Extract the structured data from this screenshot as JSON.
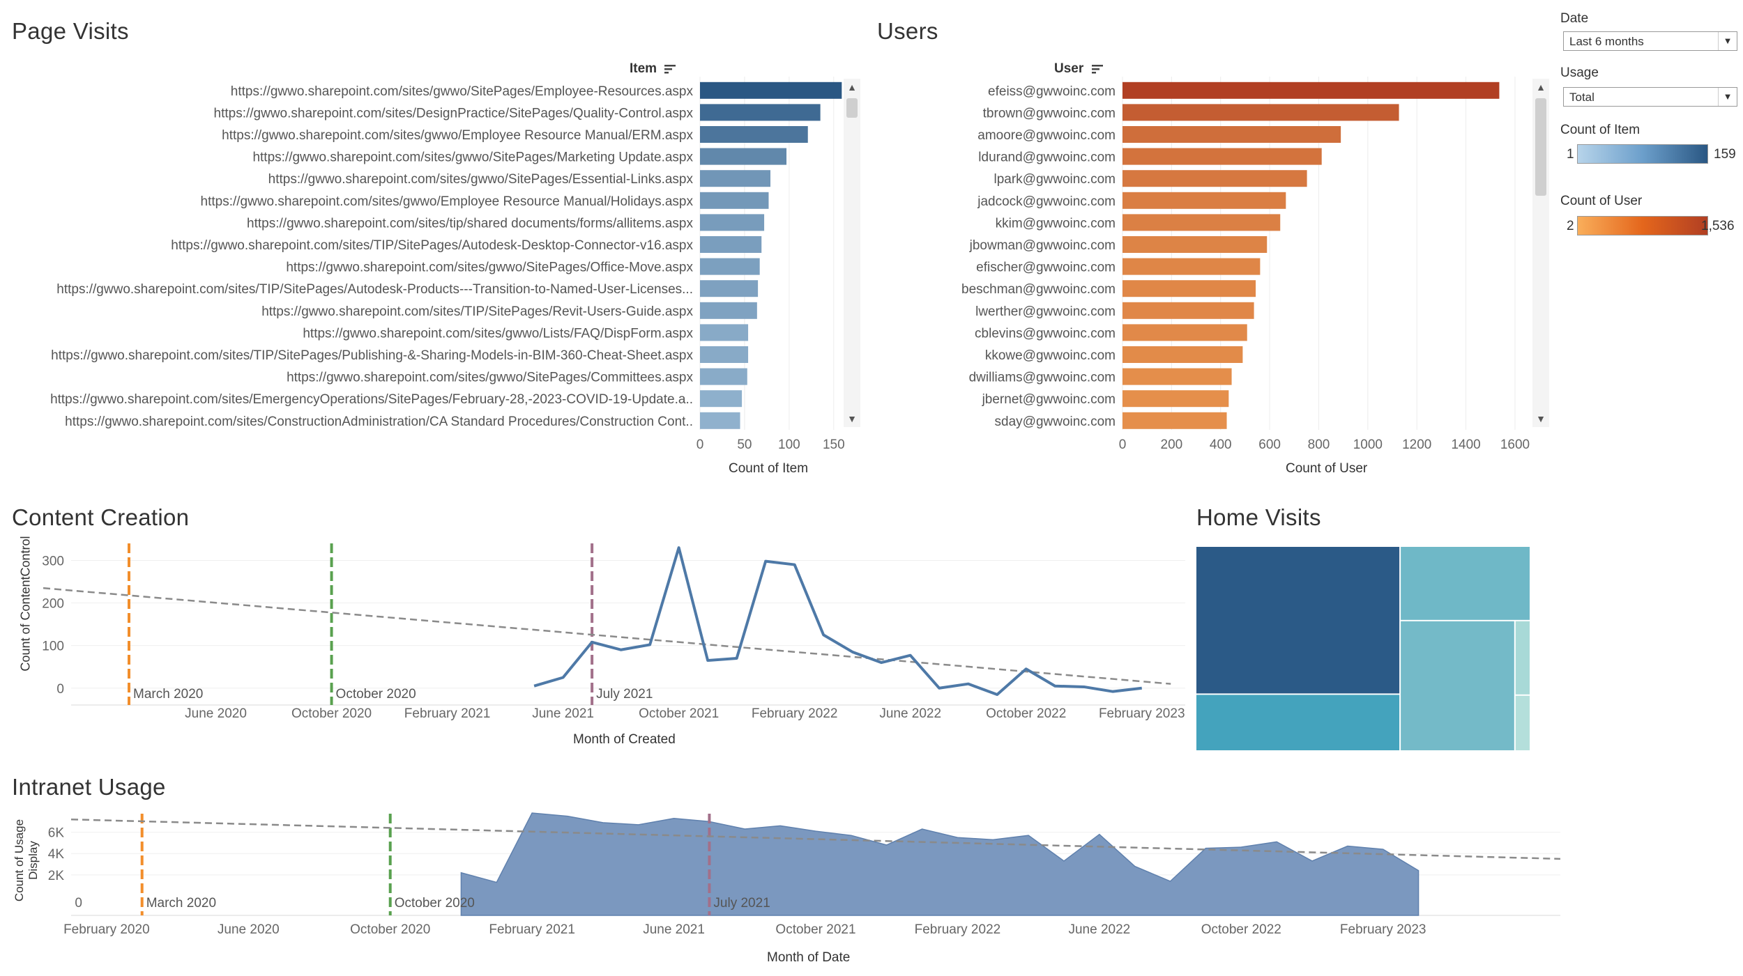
{
  "page_visits": {
    "title": "Page Visits",
    "column_header": "Item",
    "axis_title": "Count of Item"
  },
  "users": {
    "title": "Users",
    "column_header": "User",
    "axis_title": "Count of User"
  },
  "content_creation": {
    "title": "Content Creation",
    "axis_title_x": "Month of Created",
    "axis_title_y": "Count of ContentControl"
  },
  "home_visits": {
    "title": "Home Visits"
  },
  "intranet_usage": {
    "title": "Intranet Usage",
    "axis_title_x": "Month of Date",
    "axis_title_y_line1": "Count of Usage",
    "axis_title_y_line2": "Display"
  },
  "filters": {
    "date_label": "Date",
    "date_value": "Last 6 months",
    "usage_label": "Usage",
    "usage_value": "Total",
    "count_item_label": "Count of Item",
    "count_item_min": "1",
    "count_item_max": "159",
    "count_user_label": "Count of User",
    "count_user_min": "2",
    "count_user_max": "1,536"
  },
  "colors": {
    "blue_light": "#b7d4ea",
    "blue_dark": "#2a5783",
    "orange_light": "#f9ae5b",
    "orange_dark": "#b13f23",
    "line_blue": "#4e79a7",
    "area_blue": "#7b98bf",
    "ref_orange": "#f28e2b",
    "ref_green": "#59a14f",
    "ref_purple": "#a2708a",
    "trend_grey": "#8a8a8a"
  },
  "chart_data": [
    {
      "id": "page_visits",
      "type": "bar",
      "orientation": "horizontal",
      "categories": [
        "https://gwwo.sharepoint.com/sites/gwwo/SitePages/Employee-Resources.aspx",
        "https://gwwo.sharepoint.com/sites/DesignPractice/SitePages/Quality-Control.aspx",
        "https://gwwo.sharepoint.com/sites/gwwo/Employee Resource Manual/ERM.aspx",
        "https://gwwo.sharepoint.com/sites/gwwo/SitePages/Marketing Update.aspx",
        "https://gwwo.sharepoint.com/sites/gwwo/SitePages/Essential-Links.aspx",
        "https://gwwo.sharepoint.com/sites/gwwo/Employee Resource Manual/Holidays.aspx",
        "https://gwwo.sharepoint.com/sites/tip/shared documents/forms/allitems.aspx",
        "https://gwwo.sharepoint.com/sites/TIP/SitePages/Autodesk-Desktop-Connector-v16.aspx",
        "https://gwwo.sharepoint.com/sites/gwwo/SitePages/Office-Move.aspx",
        "https://gwwo.sharepoint.com/sites/TIP/SitePages/Autodesk-Products---Transition-to-Named-User-Licenses...",
        "https://gwwo.sharepoint.com/sites/TIP/SitePages/Revit-Users-Guide.aspx",
        "https://gwwo.sharepoint.com/sites/gwwo/Lists/FAQ/DispForm.aspx",
        "https://gwwo.sharepoint.com/sites/TIP/SitePages/Publishing-&-Sharing-Models-in-BIM-360-Cheat-Sheet.aspx",
        "https://gwwo.sharepoint.com/sites/gwwo/SitePages/Committees.aspx",
        "https://gwwo.sharepoint.com/sites/EmergencyOperations/SitePages/February-28,-2023-COVID-19-Update.a..",
        "https://gwwo.sharepoint.com/sites/ConstructionAdministration/CA Standard Procedures/Construction Cont.."
      ],
      "values": [
        159,
        135,
        121,
        97,
        79,
        77,
        72,
        69,
        67,
        65,
        64,
        54,
        54,
        53,
        47,
        45
      ],
      "xlim": [
        0,
        165
      ],
      "x_ticks": [
        "0",
        "50",
        "100",
        "150"
      ],
      "xlabel": "Count of Item",
      "ylabel": "Item",
      "color_range": [
        1,
        159
      ]
    },
    {
      "id": "users",
      "type": "bar",
      "orientation": "horizontal",
      "categories": [
        "efeiss@gwwoinc.com",
        "tbrown@gwwoinc.com",
        "amoore@gwwoinc.com",
        "ldurand@gwwoinc.com",
        "lpark@gwwoinc.com",
        "jadcock@gwwoinc.com",
        "kkim@gwwoinc.com",
        "jbowman@gwwoinc.com",
        "efischer@gwwoinc.com",
        "beschman@gwwoinc.com",
        "lwerther@gwwoinc.com",
        "cblevins@gwwoinc.com",
        "kkowe@gwwoinc.com",
        "dwilliams@gwwoinc.com",
        "jbernet@gwwoinc.com",
        "sday@gwwoinc.com"
      ],
      "values": [
        1536,
        1127,
        890,
        812,
        752,
        666,
        643,
        589,
        561,
        543,
        536,
        508,
        490,
        445,
        433,
        425
      ],
      "xlim": [
        0,
        1620
      ],
      "x_ticks": [
        "0",
        "200",
        "400",
        "600",
        "800",
        "1000",
        "1200",
        "1400",
        "1600"
      ],
      "xlabel": "Count of User",
      "ylabel": "User",
      "color_range": [
        2,
        1536
      ]
    },
    {
      "id": "content_creation",
      "type": "line",
      "x": [
        "2021-05",
        "2021-06",
        "2021-07",
        "2021-08",
        "2021-09",
        "2021-10",
        "2021-11",
        "2021-12",
        "2022-01",
        "2022-02",
        "2022-03",
        "2022-04",
        "2022-05",
        "2022-06",
        "2022-07",
        "2022-08",
        "2022-09",
        "2022-10",
        "2022-11",
        "2022-12",
        "2023-01",
        "2023-02"
      ],
      "y": [
        5,
        25,
        108,
        90,
        102,
        330,
        65,
        70,
        298,
        290,
        125,
        85,
        60,
        77,
        0,
        10,
        -15,
        45,
        5,
        3,
        -8,
        0
      ],
      "ylim": [
        -20,
        340
      ],
      "y_ticks": [
        "0",
        "100",
        "200",
        "300"
      ],
      "x_ticks": [
        "June 2020",
        "October 2020",
        "February 2021",
        "June 2021",
        "October 2021",
        "February 2022",
        "June 2022",
        "October 2022",
        "February 2023"
      ],
      "reference_lines": [
        {
          "date": "2020-03",
          "label": "March 2020",
          "color": "orange"
        },
        {
          "date": "2020-10",
          "label": "October 2020",
          "color": "green"
        },
        {
          "date": "2021-07",
          "label": "July 2021",
          "color": "purple"
        }
      ],
      "trend_line": {
        "start": [
          "2020-01",
          235
        ],
        "end": [
          "2023-03",
          10
        ]
      },
      "xlabel": "Month of Created",
      "ylabel": "Count of ContentControl"
    },
    {
      "id": "home_visits",
      "type": "treemap",
      "values": [
        3150,
        1210,
        1010,
        1560,
        120,
        90
      ]
    },
    {
      "id": "intranet_usage",
      "type": "area",
      "x": [
        "2020-12",
        "2021-01",
        "2021-02",
        "2021-03",
        "2021-04",
        "2021-05",
        "2021-06",
        "2021-07",
        "2021-08",
        "2021-09",
        "2021-10",
        "2021-11",
        "2021-12",
        "2022-01",
        "2022-02",
        "2022-03",
        "2022-04",
        "2022-05",
        "2022-06",
        "2022-07",
        "2022-08",
        "2022-09",
        "2022-10",
        "2022-11",
        "2022-12",
        "2023-01",
        "2023-02",
        "2023-03"
      ],
      "y": [
        2200,
        1300,
        7800,
        7500,
        6900,
        6700,
        7300,
        7000,
        6300,
        6600,
        6100,
        5700,
        4800,
        6300,
        5500,
        5300,
        5700,
        3300,
        5800,
        2800,
        1400,
        4500,
        4600,
        5100,
        3300,
        4700,
        4400,
        2400
      ],
      "ylim": [
        -1800,
        8000
      ],
      "y_ticks": [
        "0",
        "2K",
        "4K",
        "6K"
      ],
      "x_ticks": [
        "February 2020",
        "June 2020",
        "October 2020",
        "February 2021",
        "June 2021",
        "October 2021",
        "February 2022",
        "June 2022",
        "October 2022",
        "February 2023"
      ],
      "reference_lines": [
        {
          "date": "2020-03",
          "label": "March 2020",
          "color": "orange"
        },
        {
          "date": "2020-10",
          "label": "October 2020",
          "color": "green"
        },
        {
          "date": "2021-07",
          "label": "July 2021",
          "color": "purple"
        }
      ],
      "trend_line": {
        "start": [
          "2020-01",
          7200
        ],
        "end": [
          "2023-07",
          3500
        ]
      },
      "xlabel": "Month of Date",
      "ylabel": "Count of Usage Display"
    }
  ]
}
